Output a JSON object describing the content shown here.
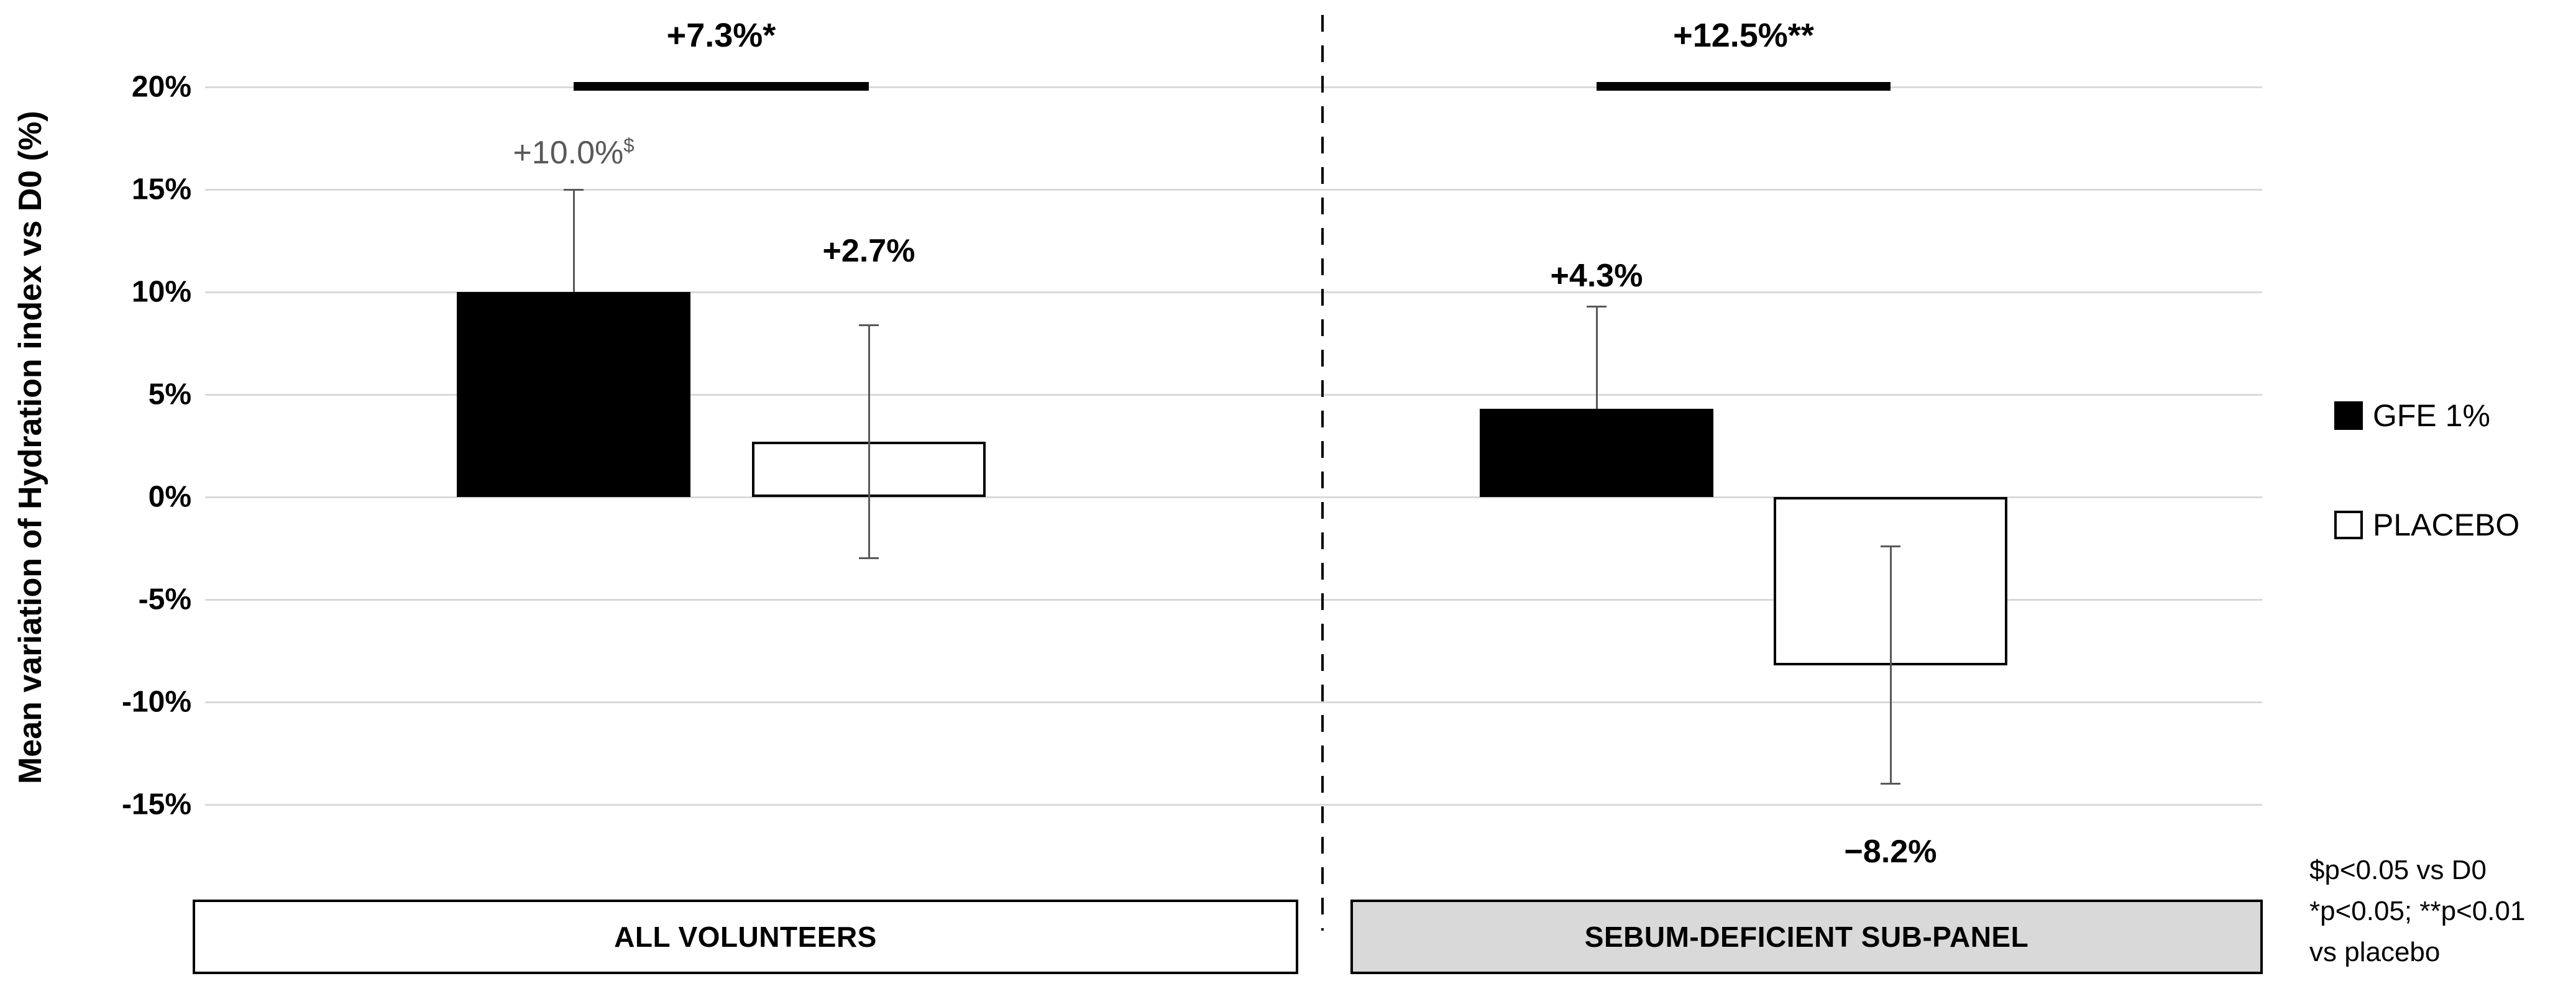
{
  "chart_data": {
    "type": "bar",
    "ylabel": "Mean variation of Hydration index vs D0 (%)",
    "y_ticks": [
      {
        "v": 20,
        "label": "20%"
      },
      {
        "v": 15,
        "label": "15%"
      },
      {
        "v": 10,
        "label": "10%"
      },
      {
        "v": 5,
        "label": "5%"
      },
      {
        "v": 0,
        "label": "0%"
      },
      {
        "v": -5,
        "label": "-5%"
      },
      {
        "v": -10,
        "label": "-10%"
      },
      {
        "v": -15,
        "label": "-15%"
      }
    ],
    "ylim": [
      -17.5,
      22.5
    ],
    "grid": true,
    "panels": [
      {
        "label": "ALL VOLUNTEERS",
        "box_fill": "#ffffff",
        "bracket": {
          "label": "+7.3%*"
        },
        "bars": [
          {
            "series": "GFE 1%",
            "value": 10.0,
            "fill": "#000000",
            "label": "+10.0%",
            "label_sup": "$",
            "label_color": "#595959",
            "label_bold": false,
            "err_high": 15.0,
            "err_low": null,
            "label_v": 16.8
          },
          {
            "series": "PLACEBO",
            "value": 2.7,
            "fill": "#ffffff",
            "label": "+2.7%",
            "label_sup": "",
            "label_color": "#000000",
            "label_bold": true,
            "err_high": 8.4,
            "err_low": -3.0,
            "label_v": 12.0
          }
        ]
      },
      {
        "label": "SEBUM-DEFICIENT SUB-PANEL",
        "box_fill": "#d9d9d9",
        "bracket": {
          "label": "+12.5%**"
        },
        "bars": [
          {
            "series": "GFE 1%",
            "value": 4.3,
            "fill": "#000000",
            "label": "+4.3%",
            "label_sup": "",
            "label_color": "#000000",
            "label_bold": true,
            "err_high": 9.3,
            "err_low": null,
            "label_v": 10.8
          },
          {
            "series": "PLACEBO",
            "value": -8.2,
            "fill": "#ffffff",
            "label": "−8.2%",
            "label_sup": "",
            "label_color": "#000000",
            "label_bold": true,
            "err_high": -2.4,
            "err_low": -14.0,
            "label_v": -17.3
          }
        ]
      }
    ],
    "legend": {
      "position": "right",
      "items": [
        {
          "label": "GFE 1%",
          "fill": "#000000"
        },
        {
          "label": "PLACEBO",
          "fill": "#ffffff"
        }
      ]
    },
    "footnotes": [
      "$p<0.05 vs D0",
      "*p<0.05; **p<0.01",
      "vs placebo"
    ],
    "colors": {
      "gridline": "#d9d9d9",
      "error_bar": "#595959",
      "bracket": "#000000",
      "panel2_fill": "#d9d9d9"
    }
  }
}
